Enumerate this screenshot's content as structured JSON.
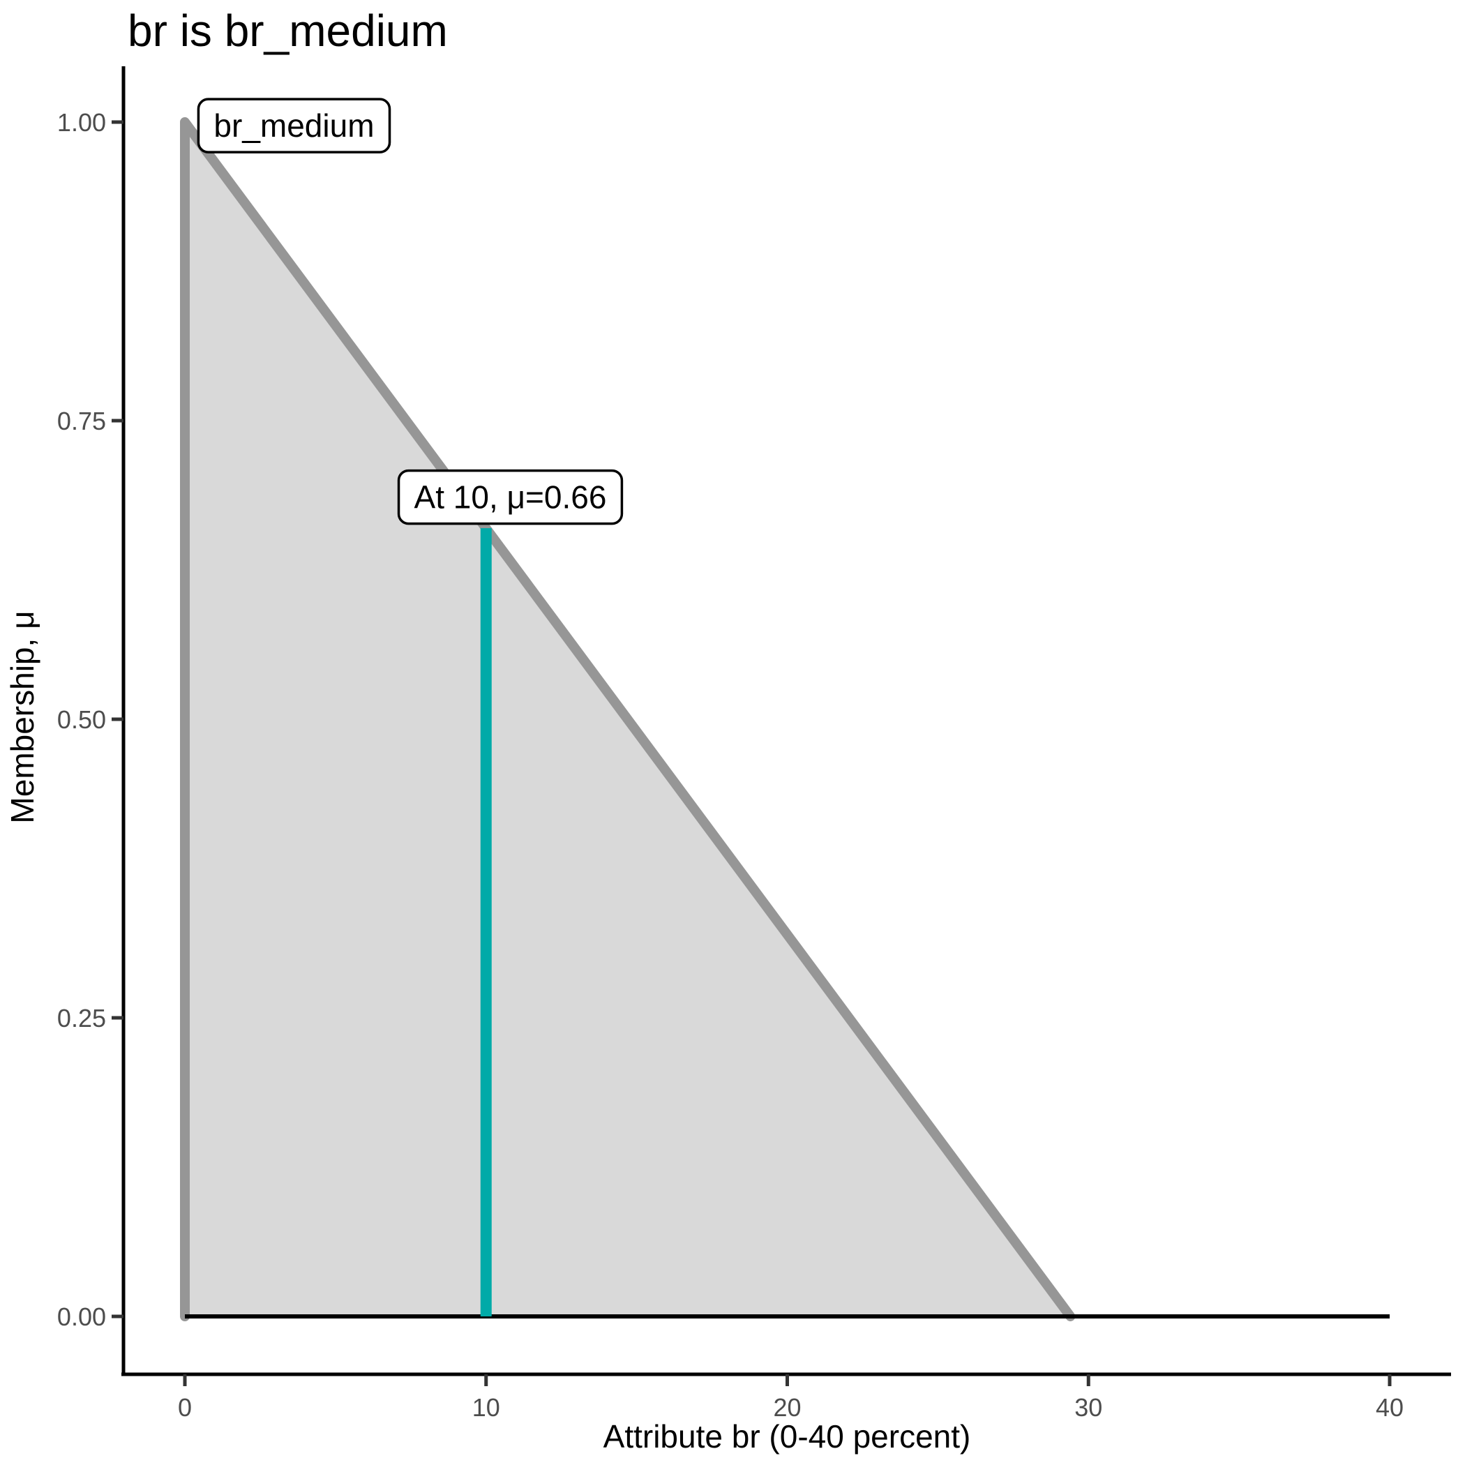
{
  "chart_data": {
    "type": "area",
    "title": "br is br_medium",
    "xlabel": "Attribute br (0-40 percent)",
    "ylabel": "Membership, μ",
    "xlim": [
      0,
      40
    ],
    "ylim": [
      0,
      1
    ],
    "xticks": [
      "0",
      "10",
      "20",
      "30",
      "40"
    ],
    "xtick_values": [
      0,
      10,
      20,
      30,
      40
    ],
    "yticks": [
      "1.00",
      "0.75",
      "0.50",
      "0.25",
      "0.00"
    ],
    "ytick_values": [
      1,
      0.75,
      0.5,
      0.25,
      0
    ],
    "grid": false,
    "legend_position": "none",
    "background": "#FFFFFF",
    "series": [
      {
        "name": "br_medium-membership-function",
        "kind": "area",
        "points": [
          [
            0,
            0
          ],
          [
            0,
            1
          ],
          [
            29.4,
            0
          ]
        ],
        "stroke": "#969696",
        "fill": "#D9D9D9",
        "stroke_width_px": 14
      },
      {
        "name": "zero-baseline",
        "kind": "line",
        "points": [
          [
            0,
            0
          ],
          [
            40,
            0
          ]
        ],
        "stroke": "#000000",
        "fill": "none",
        "stroke_width_px": 6
      },
      {
        "name": "crisp-input-line",
        "kind": "line",
        "points": [
          [
            10,
            0
          ],
          [
            10,
            0.66
          ]
        ],
        "stroke": "#00AAA8",
        "fill": "none",
        "stroke_width_px": 16
      }
    ],
    "annotations": [
      {
        "text": "br_medium",
        "x": 0.45,
        "y": 0.997
      },
      {
        "text": "At 10, μ=0.66",
        "x": 7.1,
        "y": 0.686
      }
    ],
    "colors": {
      "membership_line": "#969696",
      "membership_fill": "#D9D9D9",
      "crisp_marker": "#00AAA8",
      "axis_line": "#000000",
      "tick_mark": "#333333",
      "tick_label": "#4D4D4D",
      "title_text": "#000000",
      "axis_label_text": "#000000",
      "annotation_text": "#000000",
      "annotation_border": "#000000",
      "annotation_bg": "#FFFFFF"
    }
  }
}
